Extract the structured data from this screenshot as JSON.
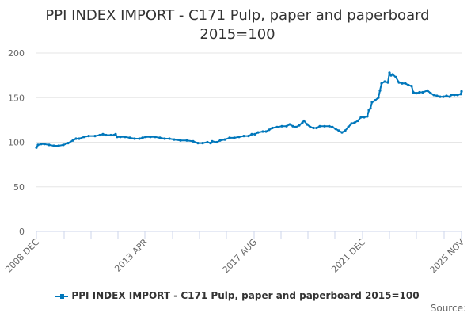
{
  "chart_data": {
    "type": "line",
    "title": "PPI INDEX IMPORT - C171 Pulp, paper and paperboard 2015=100",
    "title_lines": [
      "PPI INDEX IMPORT - C171 Pulp, paper and paperboard",
      "2015=100"
    ],
    "xlabel": "",
    "ylabel": "",
    "ylim": [
      0,
      200
    ],
    "yticks": [
      0,
      50,
      100,
      150,
      200
    ],
    "xtick_labels": [
      "2008 DEC",
      "2013 APR",
      "2017 AUG",
      "2021 DEC",
      "2025 NOV"
    ],
    "grid": true,
    "legend_position": "bottom",
    "series": [
      {
        "name": "PPI INDEX IMPORT - C171 Pulp, paper and paperboard 2015=100",
        "color": "#0077bb",
        "points": [
          [
            46,
            94
          ],
          [
            48,
            97
          ],
          [
            52,
            98
          ],
          [
            56,
            98
          ],
          [
            62,
            97
          ],
          [
            68,
            96
          ],
          [
            74,
            96
          ],
          [
            80,
            97
          ],
          [
            86,
            99
          ],
          [
            92,
            102
          ],
          [
            96,
            104
          ],
          [
            100,
            104
          ],
          [
            106,
            106
          ],
          [
            112,
            107
          ],
          [
            120,
            107
          ],
          [
            126,
            108
          ],
          [
            130,
            109
          ],
          [
            134,
            108
          ],
          [
            140,
            108
          ],
          [
            144,
            108
          ],
          [
            146,
            109
          ],
          [
            148,
            106
          ],
          [
            152,
            106
          ],
          [
            158,
            106
          ],
          [
            164,
            105
          ],
          [
            170,
            104
          ],
          [
            176,
            104
          ],
          [
            180,
            105
          ],
          [
            184,
            106
          ],
          [
            190,
            106
          ],
          [
            196,
            106
          ],
          [
            202,
            105
          ],
          [
            208,
            104
          ],
          [
            214,
            104
          ],
          [
            220,
            103
          ],
          [
            228,
            102
          ],
          [
            236,
            102
          ],
          [
            244,
            101
          ],
          [
            250,
            99
          ],
          [
            256,
            99
          ],
          [
            262,
            100
          ],
          [
            266,
            99
          ],
          [
            268,
            101
          ],
          [
            274,
            100
          ],
          [
            278,
            102
          ],
          [
            284,
            103
          ],
          [
            290,
            105
          ],
          [
            296,
            105
          ],
          [
            302,
            106
          ],
          [
            308,
            107
          ],
          [
            314,
            107
          ],
          [
            318,
            109
          ],
          [
            322,
            109
          ],
          [
            326,
            111
          ],
          [
            332,
            112
          ],
          [
            336,
            112
          ],
          [
            340,
            114
          ],
          [
            344,
            116
          ],
          [
            350,
            117
          ],
          [
            356,
            118
          ],
          [
            362,
            118
          ],
          [
            366,
            120
          ],
          [
            370,
            118
          ],
          [
            374,
            117
          ],
          [
            378,
            119
          ],
          [
            382,
            122
          ],
          [
            384,
            124
          ],
          [
            388,
            120
          ],
          [
            392,
            117
          ],
          [
            396,
            116
          ],
          [
            400,
            116
          ],
          [
            404,
            118
          ],
          [
            410,
            118
          ],
          [
            416,
            118
          ],
          [
            420,
            117
          ],
          [
            424,
            115
          ],
          [
            428,
            113
          ],
          [
            432,
            111
          ],
          [
            436,
            113
          ],
          [
            440,
            117
          ],
          [
            444,
            121
          ],
          [
            448,
            122
          ],
          [
            452,
            124
          ],
          [
            456,
            128
          ],
          [
            460,
            128
          ],
          [
            464,
            129
          ],
          [
            466,
            136
          ],
          [
            468,
            138
          ],
          [
            470,
            145
          ],
          [
            474,
            147
          ],
          [
            478,
            150
          ],
          [
            480,
            158
          ],
          [
            482,
            166
          ],
          [
            486,
            168
          ],
          [
            490,
            167
          ],
          [
            492,
            178
          ],
          [
            494,
            175
          ],
          [
            496,
            176
          ],
          [
            500,
            173
          ],
          [
            504,
            167
          ],
          [
            508,
            166
          ],
          [
            512,
            166
          ],
          [
            516,
            164
          ],
          [
            520,
            163
          ],
          [
            522,
            156
          ],
          [
            526,
            155
          ],
          [
            530,
            156
          ],
          [
            534,
            156
          ],
          [
            540,
            158
          ],
          [
            544,
            155
          ],
          [
            548,
            153
          ],
          [
            552,
            152
          ],
          [
            556,
            151
          ],
          [
            560,
            151
          ],
          [
            564,
            152
          ],
          [
            568,
            151
          ],
          [
            570,
            153
          ],
          [
            574,
            153
          ],
          [
            578,
            153
          ],
          [
            582,
            154
          ],
          [
            583,
            157
          ]
        ]
      }
    ]
  },
  "legend": {
    "label": "PPI INDEX IMPORT - C171 Pulp, paper and paperboard 2015=100"
  },
  "footer": {
    "source": "Source:"
  }
}
